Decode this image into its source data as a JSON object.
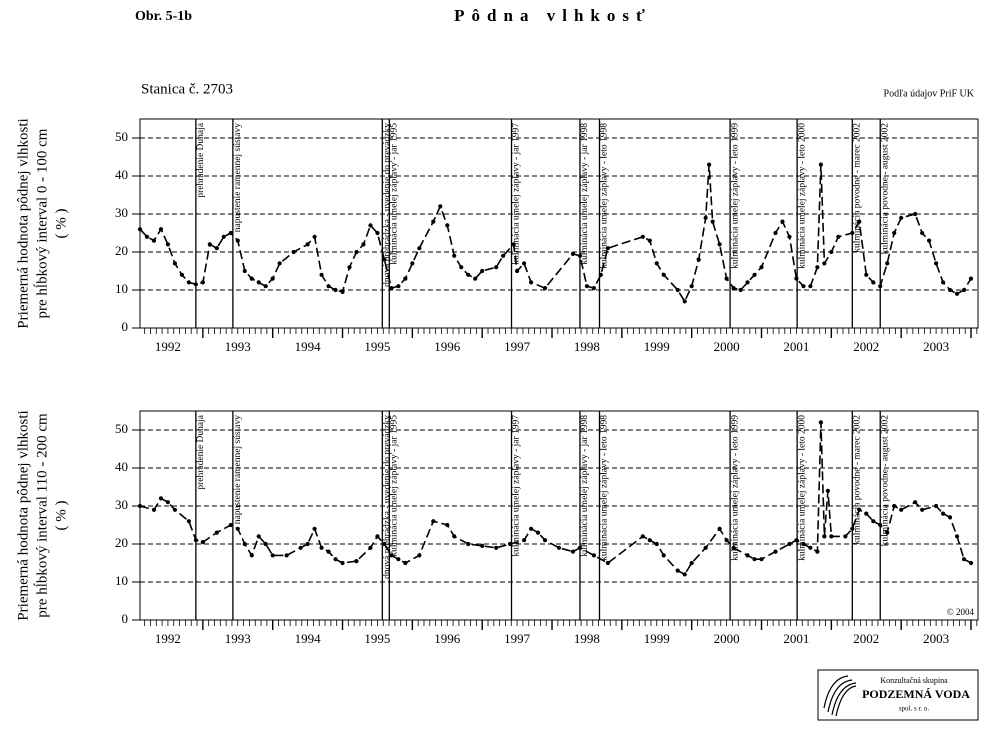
{
  "figure_label": "Obr. 5-1b",
  "title": "Pôdna vlhkosť",
  "station": "Stanica č. 2703",
  "source": "Podľa údajov PriF UK",
  "copyright": "© 2004",
  "logo": {
    "line1": "Konzultačná skupina",
    "line2": "PODZEMNÁ VODA",
    "line3": "spol. s r. o."
  },
  "chart_data": [
    {
      "type": "line",
      "ylabel": [
        "Priemerná hodnota pôdnej vlhkosti",
        "pre hĺbkový interval 0 - 100 cm",
        "( % )"
      ],
      "xlim": [
        1992.1,
        2004.1
      ],
      "ylim": [
        0,
        55
      ],
      "yticks": [
        0,
        10,
        20,
        30,
        40,
        50
      ],
      "grid": true,
      "xticks": [
        {
          "value": 1992.5,
          "label": "1992"
        },
        {
          "value": 1993.5,
          "label": "1993"
        },
        {
          "value": 1994.5,
          "label": "1994"
        },
        {
          "value": 1995.5,
          "label": "1995"
        },
        {
          "value": 1996.5,
          "label": "1996"
        },
        {
          "value": 1997.5,
          "label": "1997"
        },
        {
          "value": 1998.5,
          "label": "1998"
        },
        {
          "value": 1999.5,
          "label": "1999"
        },
        {
          "value": 2000.5,
          "label": "2000"
        },
        {
          "value": 2001.5,
          "label": "2001"
        },
        {
          "value": 2002.5,
          "label": "2002"
        },
        {
          "value": 2003.5,
          "label": "2003"
        }
      ],
      "events": [
        {
          "x": 1992.9,
          "label": "prehradenie Dunaja"
        },
        {
          "x": 1993.43,
          "label": "napustenie ramennej sústavy"
        },
        {
          "x": 1995.57,
          "label": "dnová prehrádzka - uvedenie do prevádzky"
        },
        {
          "x": 1995.67,
          "label": "kulminácia umelej záplavy - jar 1995"
        },
        {
          "x": 1997.42,
          "label": "kulminácia umelej záplavy - jar 1997"
        },
        {
          "x": 1998.4,
          "label": "kulminácia umelej záplavy - jar 1998"
        },
        {
          "x": 1998.68,
          "label": "kulminácia umelej záplavy - leto 1998"
        },
        {
          "x": 2000.55,
          "label": "kulminácia umelej záplavy - leto 1999"
        },
        {
          "x": 2001.51,
          "label": "kulminácia umelej záplavy - leto 2000"
        },
        {
          "x": 2002.3,
          "label": "kulminácia povodne - marec 2002"
        },
        {
          "x": 2002.7,
          "label": "kulminácia povodne - august 2002"
        }
      ],
      "color": "#000000",
      "x": [
        1992.1,
        1992.2,
        1992.3,
        1992.4,
        1992.5,
        1992.6,
        1992.7,
        1992.8,
        1992.9,
        1993.0,
        1993.1,
        1993.2,
        1993.3,
        1993.4,
        1993.5,
        1993.6,
        1993.7,
        1993.8,
        1993.9,
        1994.0,
        1994.1,
        1994.3,
        1994.5,
        1994.6,
        1994.7,
        1994.8,
        1994.9,
        1995.0,
        1995.1,
        1995.2,
        1995.3,
        1995.4,
        1995.5,
        1995.6,
        1995.7,
        1995.8,
        1995.9,
        1996.0,
        1996.1,
        1996.3,
        1996.4,
        1996.5,
        1996.6,
        1996.7,
        1996.8,
        1996.9,
        1997.0,
        1997.2,
        1997.3,
        1997.45,
        1997.5,
        1997.6,
        1997.7,
        1997.9,
        1998.3,
        1998.4,
        1998.5,
        1998.6,
        1998.7,
        1998.8,
        1999.3,
        1999.4,
        1999.5,
        1999.6,
        1999.8,
        1999.9,
        2000.0,
        2000.1,
        2000.2,
        2000.25,
        2000.3,
        2000.4,
        2000.5,
        2000.6,
        2000.7,
        2000.8,
        2000.9,
        2001.0,
        2001.2,
        2001.3,
        2001.4,
        2001.5,
        2001.6,
        2001.7,
        2001.8,
        2001.85,
        2001.9,
        2002.0,
        2002.1,
        2002.3,
        2002.4,
        2002.5,
        2002.6,
        2002.7,
        2002.8,
        2002.9,
        2003.0,
        2003.2,
        2003.3,
        2003.4,
        2003.5,
        2003.6,
        2003.7,
        2003.8,
        2003.9,
        2004.0
      ],
      "values": [
        26,
        24,
        23,
        26,
        22,
        17,
        14,
        12,
        11.5,
        12,
        22,
        21,
        24,
        25,
        23,
        15,
        13,
        12,
        11,
        13,
        17,
        20,
        22,
        24,
        14,
        11,
        10,
        9.5,
        16,
        20,
        22,
        27,
        25,
        18,
        10.5,
        11,
        13,
        17,
        21,
        28,
        32,
        27,
        19,
        16,
        14,
        13,
        15,
        16,
        19,
        22,
        15,
        17,
        12,
        10.5,
        19.5,
        19,
        11,
        10.5,
        14,
        21,
        24,
        23,
        17,
        14,
        10,
        7,
        11,
        18,
        29,
        43,
        28,
        22,
        13,
        10.5,
        10,
        12,
        14,
        16,
        25,
        28,
        24,
        13,
        11,
        11,
        16,
        43,
        17,
        20,
        24,
        25,
        28,
        14,
        12,
        11,
        17,
        25,
        29,
        30,
        25,
        23,
        17,
        12,
        10,
        9,
        10,
        13
      ]
    },
    {
      "type": "line",
      "ylabel": [
        "Priemerná hodnota pôdnej vlhkosti",
        "pre hĺbkový interval 110 - 200 cm",
        "( % )"
      ],
      "xlim": [
        1992.1,
        2004.1
      ],
      "ylim": [
        0,
        55
      ],
      "yticks": [
        0,
        10,
        20,
        30,
        40,
        50
      ],
      "grid": true,
      "xticks": [
        {
          "value": 1992.5,
          "label": "1992"
        },
        {
          "value": 1993.5,
          "label": "1993"
        },
        {
          "value": 1994.5,
          "label": "1994"
        },
        {
          "value": 1995.5,
          "label": "1995"
        },
        {
          "value": 1996.5,
          "label": "1996"
        },
        {
          "value": 1997.5,
          "label": "1997"
        },
        {
          "value": 1998.5,
          "label": "1998"
        },
        {
          "value": 1999.5,
          "label": "1999"
        },
        {
          "value": 2000.5,
          "label": "2000"
        },
        {
          "value": 2001.5,
          "label": "2001"
        },
        {
          "value": 2002.5,
          "label": "2002"
        },
        {
          "value": 2003.5,
          "label": "2003"
        }
      ],
      "events": [
        {
          "x": 1992.9,
          "label": "prehradenie Dunaja"
        },
        {
          "x": 1993.43,
          "label": "napustenie ramennej sústavy"
        },
        {
          "x": 1995.57,
          "label": "dnová prehrádzka - uvedenie do prevádzky"
        },
        {
          "x": 1995.67,
          "label": "kulminácia umelej záplavy - jar 1995"
        },
        {
          "x": 1997.42,
          "label": "kulminácia umelej záplavy - jar 1997"
        },
        {
          "x": 1998.4,
          "label": "kulminácia umelej záplavy - jar 1998"
        },
        {
          "x": 1998.68,
          "label": "kulminácia umelej záplavy - leto 1998"
        },
        {
          "x": 2000.55,
          "label": "kulminácia umelej záplavy - leto 1999"
        },
        {
          "x": 2001.51,
          "label": "kulminácia umelej záplavy - leto 2000"
        },
        {
          "x": 2002.3,
          "label": "kulminácia povodne - marec 2002"
        },
        {
          "x": 2002.7,
          "label": "kulminácia povodne - august 2002"
        }
      ],
      "color": "#000000",
      "x": [
        1992.1,
        1992.3,
        1992.4,
        1992.5,
        1992.6,
        1992.8,
        1992.9,
        1993.0,
        1993.2,
        1993.4,
        1993.5,
        1993.6,
        1993.7,
        1993.8,
        1993.9,
        1994.0,
        1994.2,
        1994.4,
        1994.5,
        1994.6,
        1994.7,
        1994.8,
        1994.9,
        1995.0,
        1995.2,
        1995.4,
        1995.5,
        1995.6,
        1995.7,
        1995.8,
        1995.9,
        1996.1,
        1996.3,
        1996.5,
        1996.6,
        1996.8,
        1997.0,
        1997.2,
        1997.4,
        1997.6,
        1997.7,
        1997.8,
        1997.9,
        1998.1,
        1998.3,
        1998.4,
        1998.6,
        1998.8,
        1999.3,
        1999.4,
        1999.5,
        1999.6,
        1999.8,
        1999.9,
        2000.0,
        2000.2,
        2000.4,
        2000.5,
        2000.6,
        2000.8,
        2000.9,
        2001.0,
        2001.2,
        2001.4,
        2001.5,
        2001.6,
        2001.7,
        2001.8,
        2001.85,
        2001.9,
        2001.95,
        2002.0,
        2002.2,
        2002.3,
        2002.4,
        2002.5,
        2002.6,
        2002.7,
        2002.8,
        2002.9,
        2003.0,
        2003.2,
        2003.3,
        2003.5,
        2003.6,
        2003.7,
        2003.8,
        2003.9,
        2004.0
      ],
      "values": [
        30,
        29,
        32,
        31,
        29,
        26,
        21,
        20.5,
        23,
        25,
        24,
        20,
        17,
        22,
        20,
        17,
        17,
        19,
        20,
        24,
        19,
        18,
        16,
        15,
        15.5,
        19,
        22,
        20,
        17,
        16,
        15,
        17,
        26,
        25,
        22,
        20,
        19.5,
        19,
        20,
        21,
        24,
        23,
        21,
        19,
        18,
        19,
        17,
        15,
        22,
        21,
        20,
        17,
        13,
        12,
        15,
        19,
        24,
        21,
        19,
        17,
        16,
        16,
        18,
        20,
        21,
        20,
        19,
        18,
        52,
        22,
        34,
        22,
        22,
        24,
        29,
        28,
        26,
        25,
        23,
        30,
        29,
        31,
        29,
        30,
        28,
        27,
        22,
        16,
        15
      ]
    }
  ]
}
